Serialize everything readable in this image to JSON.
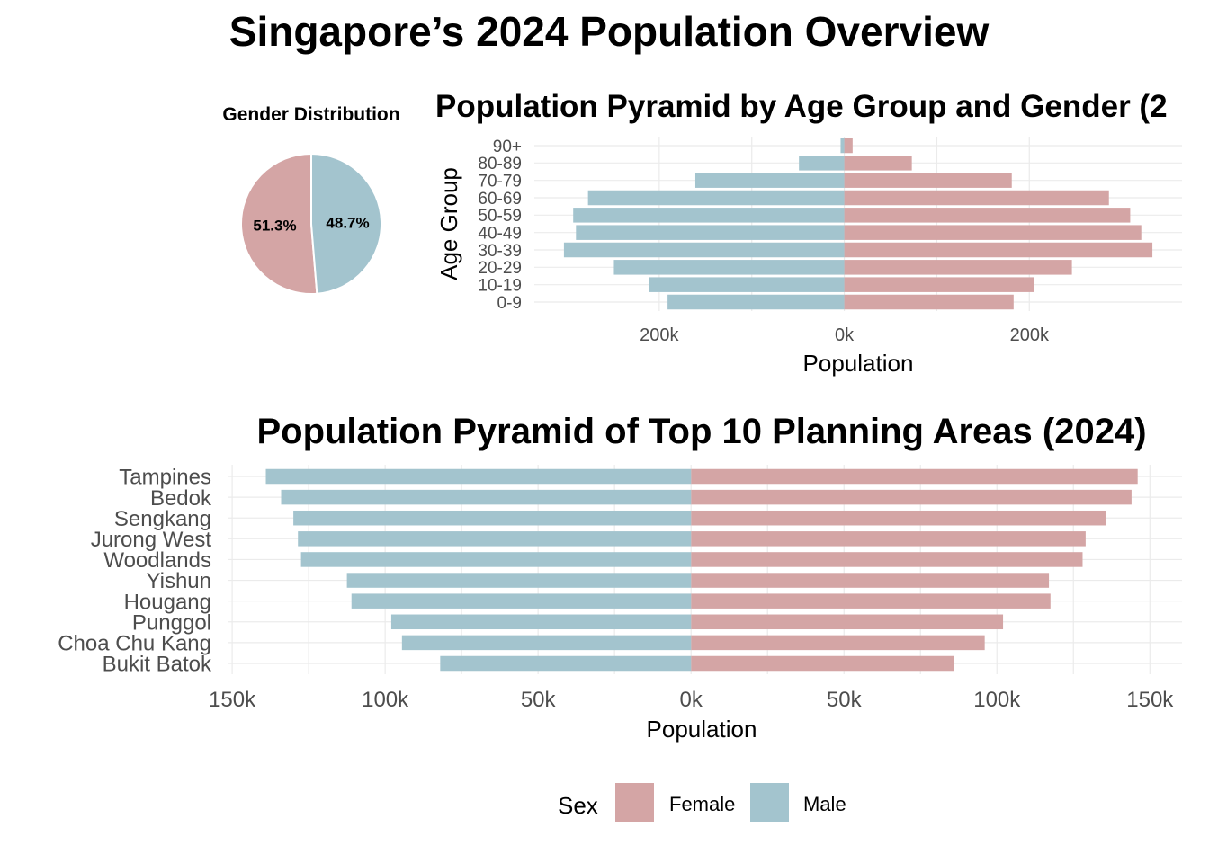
{
  "title": "Singapore’s 2024 Population Overview",
  "colors": {
    "female": "#D4A5A5",
    "male": "#A3C4CE",
    "grid": "#EBEBEB"
  },
  "legend": {
    "title": "Sex",
    "items": [
      {
        "label": "Female",
        "color": "#D4A5A5"
      },
      {
        "label": "Male",
        "color": "#A3C4CE"
      }
    ]
  },
  "chart_data": [
    {
      "type": "pie",
      "title": "Gender Distribution",
      "labels": [
        "Female",
        "Male"
      ],
      "values": [
        51.3,
        48.7
      ],
      "value_labels": [
        "51.3%",
        "48.7%"
      ]
    },
    {
      "type": "bar",
      "orientation": "horizontal",
      "title": "Population Pyramid by Age Group and Gender (2",
      "xlabel": "Population",
      "ylabel": "Age Group",
      "categories": [
        "90+",
        "80-89",
        "70-79",
        "60-69",
        "50-59",
        "40-49",
        "30-39",
        "20-29",
        "10-19",
        "0-9"
      ],
      "series": [
        {
          "name": "Female",
          "values": [
            9000,
            73000,
            181000,
            286000,
            309000,
            321000,
            333000,
            246000,
            205000,
            183000
          ]
        },
        {
          "name": "Male",
          "values": [
            -4000,
            -49000,
            -161000,
            -277000,
            -293000,
            -290000,
            -303000,
            -249000,
            -211000,
            -191000
          ]
        }
      ],
      "xticks": [
        -200000,
        0,
        200000
      ],
      "xtick_labels": [
        "200k",
        "0k",
        "200k"
      ],
      "xlim": [
        -335000,
        365000
      ],
      "grid": true
    },
    {
      "type": "bar",
      "orientation": "horizontal",
      "title": "Population Pyramid of Top 10 Planning Areas (2024)",
      "xlabel": "Population",
      "ylabel": "",
      "categories": [
        "Tampines",
        "Bedok",
        "Sengkang",
        "Jurong West",
        "Woodlands",
        "Yishun",
        "Hougang",
        "Punggol",
        "Choa Chu Kang",
        "Bukit Batok"
      ],
      "series": [
        {
          "name": "Female",
          "values": [
            146000,
            144000,
            135500,
            129000,
            128000,
            117000,
            117500,
            102000,
            96000,
            86000
          ]
        },
        {
          "name": "Male",
          "values": [
            -139000,
            -134000,
            -130000,
            -128500,
            -127500,
            -112500,
            -111000,
            -98000,
            -94500,
            -82000
          ]
        }
      ],
      "xticks": [
        -150000,
        -100000,
        -50000,
        0,
        50000,
        100000,
        150000
      ],
      "xtick_labels": [
        "150k",
        "100k",
        "50k",
        "0k",
        "50k",
        "100k",
        "150k"
      ],
      "xlim": [
        -151500,
        160500
      ],
      "grid": true
    }
  ]
}
